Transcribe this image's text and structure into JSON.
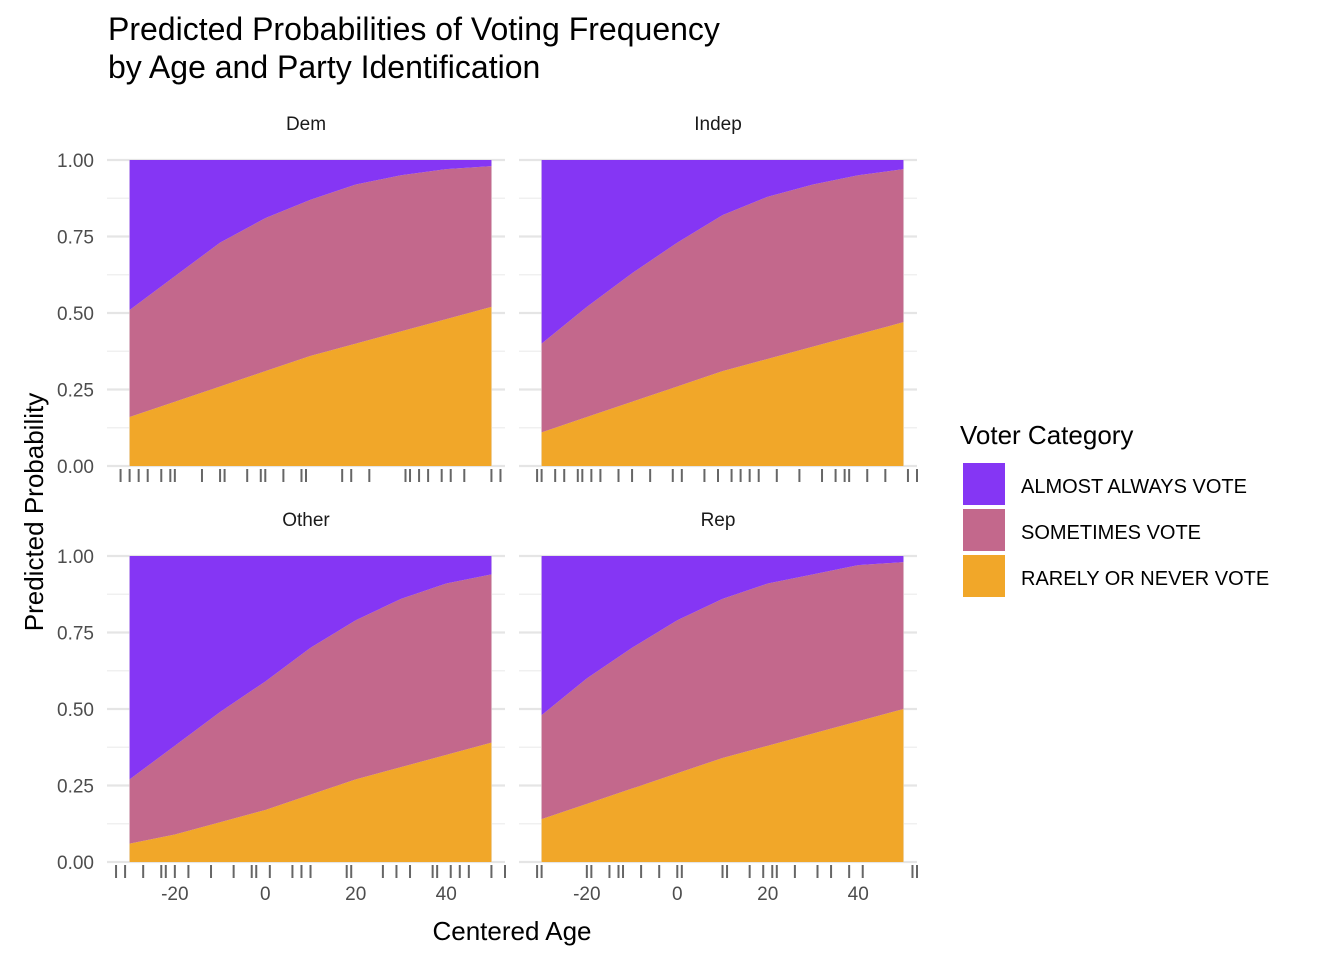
{
  "chart_data": {
    "type": "area",
    "title": [
      "Predicted Probabilities of Voting Frequency",
      "by Age and Party Identification"
    ],
    "xlabel": "Centered Age",
    "ylabel": "Predicted Probability",
    "xlim": [
      -35,
      53
    ],
    "ylim": [
      0,
      1
    ],
    "x_ticks": [
      -20,
      0,
      20,
      40
    ],
    "x_tick_labels": [
      "-20",
      "0",
      "20",
      "40"
    ],
    "y_ticks": [
      0,
      0.25,
      0.5,
      0.75,
      1
    ],
    "y_tick_labels": [
      "0.00",
      "0.25",
      "0.50",
      "0.75",
      "1.00"
    ],
    "stacked": true,
    "grid": true,
    "legend": {
      "title": "Voter Category",
      "position": "right",
      "entries": [
        {
          "label": "ALMOST ALWAYS VOTE",
          "color": "#8536f4"
        },
        {
          "label": "SOMETIMES VOTE",
          "color": "#c3688c"
        },
        {
          "label": "RARELY OR NEVER VOTE",
          "color": "#f1a729"
        }
      ]
    },
    "x": [
      -30,
      -20,
      -10,
      0,
      10,
      20,
      30,
      40,
      50
    ],
    "facets": [
      {
        "label": "Dem",
        "series": [
          {
            "name": "RARELY OR NEVER VOTE",
            "values": [
              0.16,
              0.21,
              0.26,
              0.31,
              0.36,
              0.4,
              0.44,
              0.48,
              0.52
            ]
          },
          {
            "name": "SOMETIMES VOTE",
            "values": [
              0.35,
              0.41,
              0.47,
              0.5,
              0.51,
              0.52,
              0.51,
              0.49,
              0.46
            ]
          },
          {
            "name": "ALMOST ALWAYS VOTE",
            "values": [
              0.49,
              0.38,
              0.27,
              0.19,
              0.13,
              0.08,
              0.05,
              0.03,
              0.02
            ]
          }
        ],
        "rug": [
          -32,
          -30,
          -28,
          -26,
          -23,
          -21,
          -20,
          -14,
          -10,
          -9,
          -4,
          -1,
          0,
          4,
          8,
          9,
          17,
          19,
          23,
          31,
          32,
          34,
          36,
          39,
          41,
          44,
          50,
          52
        ]
      },
      {
        "label": "Indep",
        "series": [
          {
            "name": "RARELY OR NEVER VOTE",
            "values": [
              0.11,
              0.16,
              0.21,
              0.26,
              0.31,
              0.35,
              0.39,
              0.43,
              0.47
            ]
          },
          {
            "name": "SOMETIMES VOTE",
            "values": [
              0.29,
              0.36,
              0.42,
              0.47,
              0.51,
              0.53,
              0.53,
              0.52,
              0.5
            ]
          },
          {
            "name": "ALMOST ALWAYS VOTE",
            "values": [
              0.6,
              0.48,
              0.37,
              0.27,
              0.18,
              0.12,
              0.08,
              0.05,
              0.03
            ]
          }
        ],
        "rug": [
          -31,
          -30,
          -27,
          -25,
          -22,
          -21,
          -19,
          -17,
          -13,
          -10,
          -6,
          -1,
          1,
          6,
          9,
          12,
          14,
          16,
          18,
          22,
          27,
          32,
          35,
          37,
          38,
          42,
          46,
          51,
          53
        ]
      },
      {
        "label": "Other",
        "series": [
          {
            "name": "RARELY OR NEVER VOTE",
            "values": [
              0.06,
              0.09,
              0.13,
              0.17,
              0.22,
              0.27,
              0.31,
              0.35,
              0.39
            ]
          },
          {
            "name": "SOMETIMES VOTE",
            "values": [
              0.21,
              0.29,
              0.36,
              0.42,
              0.48,
              0.52,
              0.55,
              0.56,
              0.55
            ]
          },
          {
            "name": "ALMOST ALWAYS VOTE",
            "values": [
              0.73,
              0.62,
              0.51,
              0.41,
              0.3,
              0.21,
              0.14,
              0.09,
              0.06
            ]
          }
        ],
        "rug": [
          -33,
          -31,
          -27,
          -23,
          -22,
          -20,
          -17,
          -12,
          -7,
          -3,
          -2,
          1,
          6,
          8,
          10,
          18,
          19,
          26,
          29,
          32,
          37,
          38,
          41,
          43,
          45,
          50,
          53
        ]
      },
      {
        "label": "Rep",
        "series": [
          {
            "name": "RARELY OR NEVER VOTE",
            "values": [
              0.14,
              0.19,
              0.24,
              0.29,
              0.34,
              0.38,
              0.42,
              0.46,
              0.5
            ]
          },
          {
            "name": "SOMETIMES VOTE",
            "values": [
              0.34,
              0.41,
              0.46,
              0.5,
              0.52,
              0.53,
              0.52,
              0.51,
              0.48
            ]
          },
          {
            "name": "ALMOST ALWAYS VOTE",
            "values": [
              0.52,
              0.4,
              0.3,
              0.21,
              0.14,
              0.09,
              0.06,
              0.03,
              0.02
            ]
          }
        ],
        "rug": [
          -31,
          -30,
          -20,
          -19,
          -15,
          -13,
          -12,
          -8,
          -4,
          0,
          1,
          10,
          11,
          16,
          19,
          21,
          22,
          26,
          31,
          34,
          38,
          41,
          52,
          53
        ]
      }
    ]
  }
}
